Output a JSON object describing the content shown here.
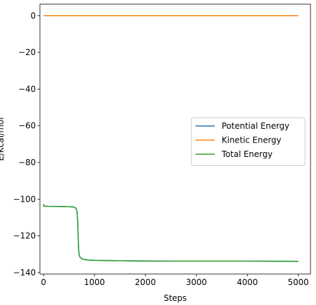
{
  "chart_data": {
    "type": "line",
    "title": "",
    "xlabel": "Steps",
    "ylabel": "E/Kcal/mol",
    "xlim": [
      -70,
      5240
    ],
    "ylim": [
      -140.8,
      6.3
    ],
    "xticks": [
      0,
      1000,
      2000,
      3000,
      4000,
      5000
    ],
    "yticks": [
      0,
      -20,
      -40,
      -60,
      -80,
      -100,
      -120,
      -140
    ],
    "grid": false,
    "legend_position": "center-right",
    "series": [
      {
        "name": "Potential Energy",
        "color": "#1f77b4",
        "x": [
          0,
          10,
          30,
          100,
          300,
          500,
          600,
          640,
          660,
          670,
          680,
          690,
          700,
          720,
          760,
          850,
          1000,
          1500,
          2000,
          3000,
          4000,
          5000
        ],
        "y": [
          -102.7,
          -103.9,
          -103.8,
          -103.9,
          -104.0,
          -104.1,
          -104.3,
          -105.0,
          -107.0,
          -112.0,
          -120.0,
          -127.0,
          -130.5,
          -131.8,
          -132.6,
          -133.1,
          -133.4,
          -133.6,
          -133.7,
          -133.8,
          -133.8,
          -133.9
        ]
      },
      {
        "name": "Kinetic Energy",
        "color": "#ff7f0e",
        "x": [
          0,
          5000
        ],
        "y": [
          0,
          0
        ]
      },
      {
        "name": "Total Energy",
        "color": "#2ca02c",
        "x": [
          0,
          10,
          30,
          100,
          300,
          500,
          600,
          640,
          660,
          670,
          680,
          690,
          700,
          720,
          760,
          850,
          1000,
          1500,
          2000,
          3000,
          4000,
          5000
        ],
        "y": [
          -102.7,
          -103.9,
          -103.8,
          -103.9,
          -104.0,
          -104.1,
          -104.3,
          -105.0,
          -107.0,
          -112.0,
          -120.0,
          -127.0,
          -130.5,
          -131.8,
          -132.6,
          -133.1,
          -133.4,
          -133.6,
          -133.7,
          -133.8,
          -133.8,
          -133.9
        ]
      }
    ]
  }
}
